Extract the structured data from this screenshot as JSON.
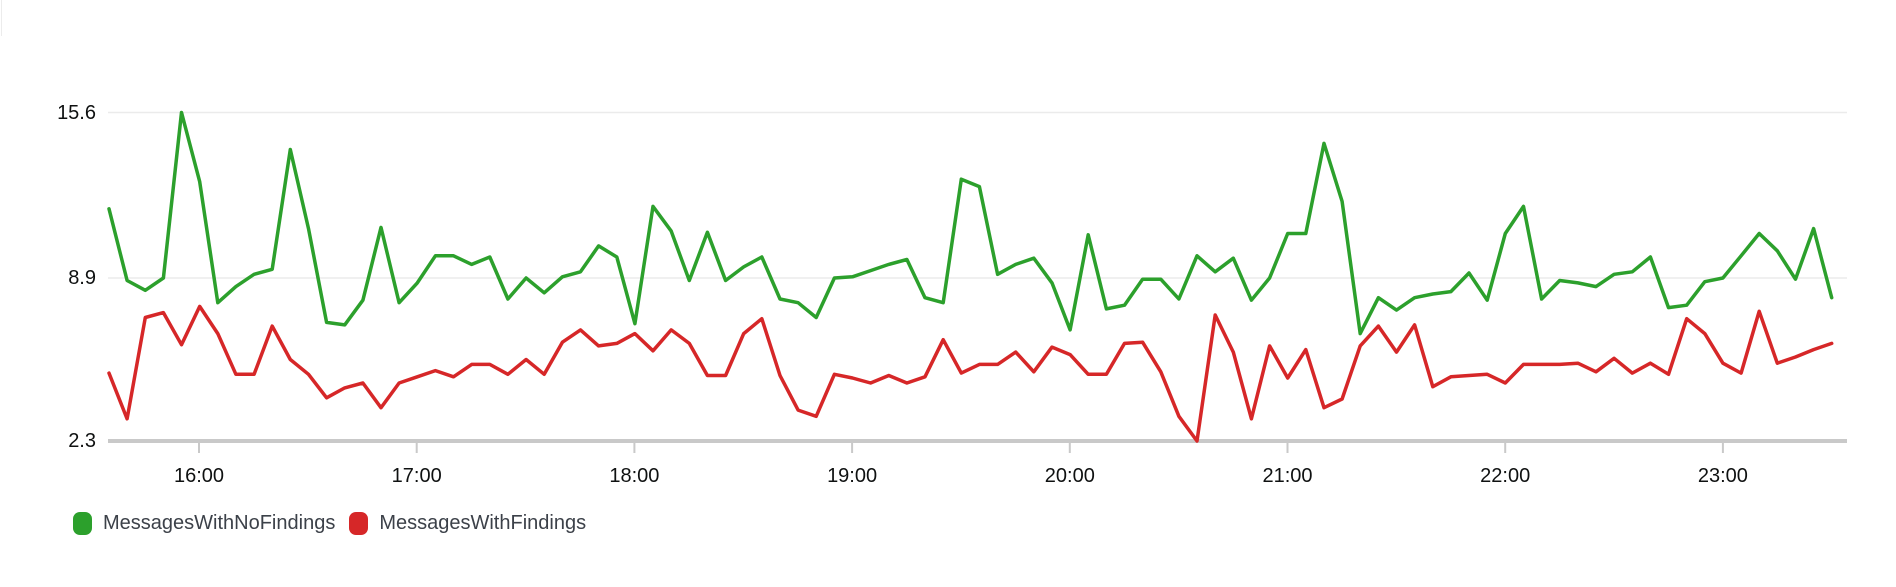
{
  "chart_data": {
    "type": "line",
    "title": "",
    "xlabel": "",
    "ylabel": "",
    "x_ticks": [
      "16:00",
      "17:00",
      "18:00",
      "19:00",
      "20:00",
      "21:00",
      "22:00",
      "23:00"
    ],
    "y_ticks": [
      15.6,
      8.9,
      2.3
    ],
    "ylim": [
      2.3,
      15.6
    ],
    "x_range": [
      "15:35",
      "23:30"
    ],
    "interval_minutes": 5,
    "grid": "horizontal-only",
    "legend_position": "bottom-left",
    "axis_color": "#c9c9c9",
    "gridline_color": "#ebebeb",
    "series": [
      {
        "name": "MessagesWithNoFindings",
        "color": "#2ca02c",
        "values": [
          11.7,
          8.8,
          8.4,
          8.9,
          15.6,
          12.8,
          7.9,
          8.55,
          9.05,
          9.25,
          14.1,
          10.9,
          7.1,
          7.0,
          8.0,
          10.95,
          7.9,
          8.7,
          9.8,
          9.8,
          9.45,
          9.75,
          8.05,
          8.9,
          8.3,
          8.95,
          9.15,
          10.2,
          9.75,
          7.05,
          11.8,
          10.8,
          8.8,
          10.75,
          8.8,
          9.35,
          9.75,
          8.05,
          7.9,
          7.3,
          8.9,
          8.95,
          9.2,
          9.45,
          9.65,
          8.1,
          7.9,
          12.9,
          12.6,
          9.05,
          9.45,
          9.7,
          8.7,
          6.8,
          10.65,
          7.65,
          7.8,
          8.85,
          8.85,
          8.05,
          9.8,
          9.15,
          9.7,
          8.0,
          8.9,
          10.7,
          10.7,
          14.35,
          12.0,
          6.65,
          8.1,
          7.6,
          8.1,
          8.25,
          8.35,
          9.1,
          8.0,
          10.7,
          11.8,
          8.05,
          8.8,
          8.7,
          8.55,
          9.05,
          9.15,
          9.75,
          7.7,
          7.8,
          8.75,
          8.9,
          9.8,
          10.7,
          10.0,
          8.85,
          10.9,
          8.1
        ]
      },
      {
        "name": "MessagesWithFindings",
        "color": "#d62728",
        "values": [
          5.05,
          3.2,
          7.3,
          7.5,
          6.2,
          7.75,
          6.65,
          5.0,
          5.0,
          6.95,
          5.6,
          5.0,
          4.05,
          4.45,
          4.65,
          3.65,
          4.65,
          4.9,
          5.15,
          4.9,
          5.4,
          5.4,
          5.0,
          5.6,
          5.0,
          6.3,
          6.8,
          6.15,
          6.25,
          6.65,
          5.95,
          6.8,
          6.25,
          4.95,
          4.95,
          6.65,
          7.25,
          4.95,
          3.55,
          3.3,
          5.0,
          4.85,
          4.65,
          4.95,
          4.65,
          4.9,
          6.4,
          5.05,
          5.4,
          5.4,
          5.9,
          5.1,
          6.1,
          5.8,
          5.0,
          5.0,
          6.25,
          6.3,
          5.1,
          3.3,
          2.3,
          7.4,
          5.9,
          3.2,
          6.15,
          4.85,
          6.0,
          3.65,
          4.0,
          6.15,
          6.95,
          5.9,
          7.0,
          4.5,
          4.9,
          4.95,
          5.0,
          4.65,
          5.4,
          5.4,
          5.4,
          5.45,
          5.1,
          5.65,
          5.05,
          5.45,
          5.0,
          7.25,
          6.65,
          5.45,
          5.05,
          7.55,
          5.45,
          5.7,
          6.0,
          6.25
        ]
      }
    ]
  },
  "legend": {
    "items": [
      {
        "label": "MessagesWithNoFindings"
      },
      {
        "label": "MessagesWithFindings"
      }
    ]
  }
}
